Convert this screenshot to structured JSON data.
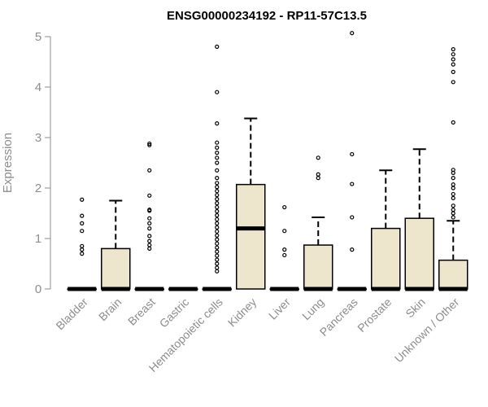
{
  "chart_data": {
    "type": "boxplot",
    "title": "ENSG00000234192 - RP11-57C13.5",
    "ylabel": "Expression",
    "xlabel": "",
    "ylim": [
      0,
      5
    ],
    "yticks": [
      0,
      1,
      2,
      3,
      4,
      5
    ],
    "grid": false,
    "box_fill": "#ede6cc",
    "categories": [
      "Bladder",
      "Brain",
      "Breast",
      "Gastric",
      "Hematopoietic cells",
      "Kidney",
      "Liver",
      "Lung",
      "Pancreas",
      "Prostate",
      "Skin",
      "Unknown / Other"
    ],
    "boxes": [
      {
        "q1": 0,
        "median": 0,
        "q3": 0,
        "whisker_low": 0,
        "whisker_high": 0,
        "outliers": [
          0.7,
          0.78,
          0.85,
          1.15,
          1.3,
          1.45,
          1.77
        ]
      },
      {
        "q1": 0,
        "median": 0,
        "q3": 0.8,
        "whisker_low": 0,
        "whisker_high": 1.75,
        "outliers": []
      },
      {
        "q1": 0,
        "median": 0,
        "q3": 0,
        "whisker_low": 0,
        "whisker_high": 0,
        "outliers": [
          0.8,
          0.87,
          0.95,
          1.05,
          1.2,
          1.3,
          1.4,
          1.55,
          1.57,
          1.85,
          2.35,
          2.85,
          2.88
        ]
      },
      {
        "q1": 0,
        "median": 0,
        "q3": 0,
        "whisker_low": 0,
        "whisker_high": 0,
        "outliers": []
      },
      {
        "q1": 0,
        "median": 0,
        "q3": 0,
        "whisker_low": 0,
        "whisker_high": 0,
        "outliers": [
          0.35,
          0.42,
          0.5,
          0.58,
          0.66,
          0.74,
          0.82,
          0.9,
          0.98,
          1.06,
          1.14,
          1.22,
          1.3,
          1.38,
          1.46,
          1.54,
          1.62,
          1.7,
          1.78,
          1.86,
          1.94,
          2.02,
          2.1,
          2.2,
          2.35,
          2.5,
          2.6,
          2.7,
          2.8,
          2.9,
          3.28,
          3.9,
          4.8
        ]
      },
      {
        "q1": 0,
        "median": 1.2,
        "q3": 2.07,
        "whisker_low": 0,
        "whisker_high": 3.38,
        "outliers": []
      },
      {
        "q1": 0,
        "median": 0,
        "q3": 0,
        "whisker_low": 0,
        "whisker_high": 0,
        "outliers": [
          0.67,
          0.78,
          1.15,
          1.62
        ]
      },
      {
        "q1": 0,
        "median": 0,
        "q3": 0.87,
        "whisker_low": 0,
        "whisker_high": 1.42,
        "outliers": [
          2.2,
          2.27,
          2.6
        ]
      },
      {
        "q1": 0,
        "median": 0,
        "q3": 0,
        "whisker_low": 0,
        "whisker_high": 0,
        "outliers": [
          0.78,
          1.42,
          2.08,
          2.67,
          5.07
        ]
      },
      {
        "q1": 0,
        "median": 0,
        "q3": 1.2,
        "whisker_low": 0,
        "whisker_high": 2.35,
        "outliers": []
      },
      {
        "q1": 0,
        "median": 0,
        "q3": 1.4,
        "whisker_low": 0,
        "whisker_high": 2.77,
        "outliers": []
      },
      {
        "q1": 0,
        "median": 0,
        "q3": 0.57,
        "whisker_low": 0,
        "whisker_high": 1.35,
        "outliers": [
          1.42,
          1.5,
          1.57,
          1.65,
          1.8,
          1.88,
          2.0,
          2.07,
          2.2,
          2.3,
          2.36,
          3.3,
          4.1,
          4.3,
          4.45,
          4.55,
          4.65,
          4.75
        ]
      }
    ]
  }
}
